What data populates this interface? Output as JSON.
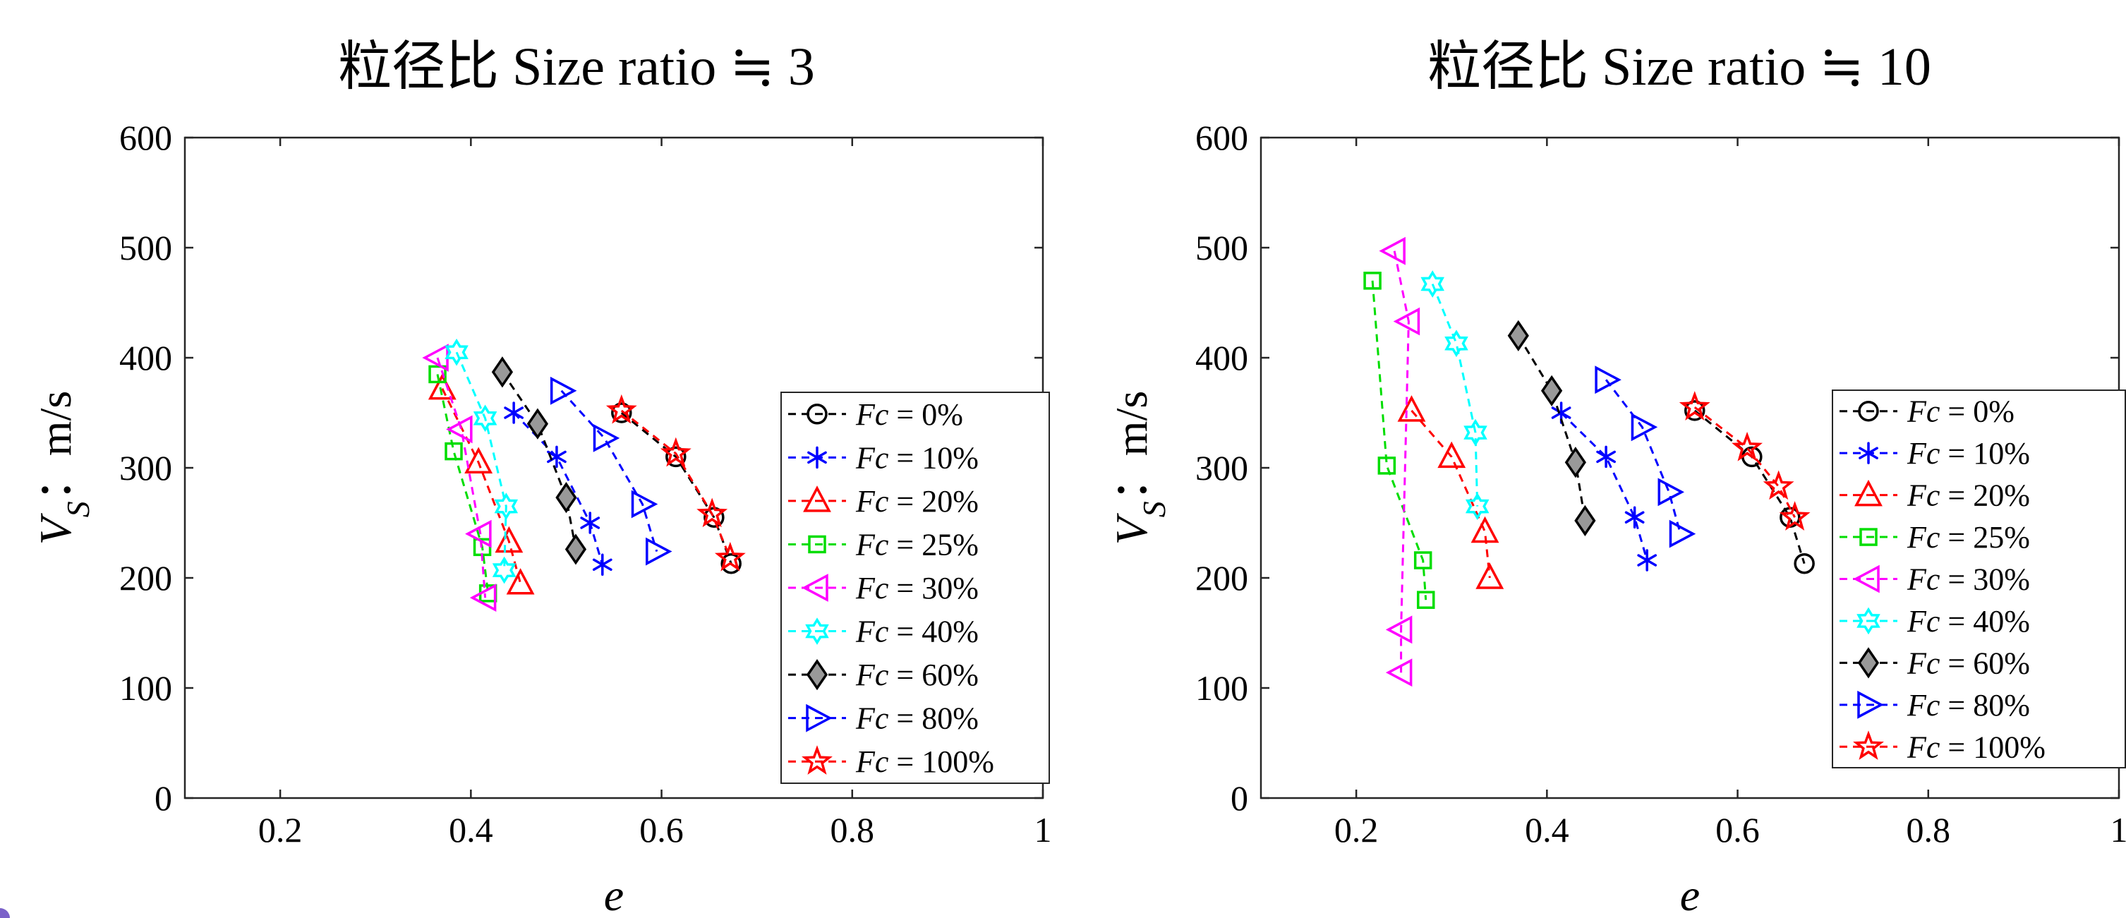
{
  "chart_data": [
    {
      "type": "scatter",
      "title": "粒径比 Size ratio ≒ 3",
      "xlabel": "e",
      "ylabel": "V_S : m/s",
      "ylabel_main": "V",
      "ylabel_sub": "S",
      "ylabel_rest": "：m/s",
      "xlim": [
        0.1,
        1.0
      ],
      "ylim": [
        0,
        600
      ],
      "xticks": [
        0.2,
        0.4,
        0.6,
        0.8,
        1.0
      ],
      "xtick_labels": [
        "0.2",
        "0.4",
        "0.6",
        "0.8",
        "1"
      ],
      "yticks": [
        0,
        100,
        200,
        300,
        400,
        500,
        600
      ],
      "ytick_labels": [
        "0",
        "100",
        "200",
        "300",
        "400",
        "500",
        "600"
      ],
      "grid": false,
      "legend_position": "right",
      "series": [
        {
          "name": "Fc = 0%",
          "var": "Fc",
          "eq": " = ",
          "val": "0%",
          "color": "#000000",
          "marker": "circle",
          "x": [
            0.558,
            0.615,
            0.655,
            0.673
          ],
          "y": [
            350,
            310,
            255,
            213
          ]
        },
        {
          "name": "Fc = 10%",
          "var": "Fc",
          "eq": " = ",
          "val": "10%",
          "color": "#0000ff",
          "marker": "asterisk",
          "x": [
            0.445,
            0.49,
            0.525,
            0.538
          ],
          "y": [
            350,
            310,
            250,
            212
          ]
        },
        {
          "name": "Fc = 20%",
          "var": "Fc",
          "eq": " = ",
          "val": "20%",
          "color": "#ff0000",
          "marker": "triangle-up",
          "x": [
            0.37,
            0.408,
            0.44,
            0.452
          ],
          "y": [
            372,
            305,
            233,
            195
          ]
        },
        {
          "name": "Fc = 25%",
          "var": "Fc",
          "eq": " = ",
          "val": "25%",
          "color": "#00dd00",
          "marker": "square",
          "x": [
            0.365,
            0.382,
            0.412,
            0.418
          ],
          "y": [
            385,
            315,
            228,
            186
          ]
        },
        {
          "name": "Fc = 30%",
          "var": "Fc",
          "eq": " = ",
          "val": "30%",
          "color": "#ff00ff",
          "marker": "triangle-left",
          "x": [
            0.365,
            0.39,
            0.41,
            0.415
          ],
          "y": [
            400,
            335,
            240,
            182
          ]
        },
        {
          "name": "Fc = 40%",
          "var": "Fc",
          "eq": " = ",
          "val": "40%",
          "color": "#00ffff",
          "marker": "hexagram",
          "x": [
            0.385,
            0.415,
            0.437,
            0.435
          ],
          "y": [
            405,
            345,
            265,
            207
          ]
        },
        {
          "name": "Fc = 60%",
          "var": "Fc",
          "eq": " = ",
          "val": "60%",
          "color": "#000000",
          "fill": "#999999",
          "marker": "diamond",
          "x": [
            0.433,
            0.47,
            0.5,
            0.51
          ],
          "y": [
            387,
            340,
            273,
            226
          ]
        },
        {
          "name": "Fc = 80%",
          "var": "Fc",
          "eq": " = ",
          "val": "80%",
          "color": "#0000ff",
          "marker": "triangle-right",
          "x": [
            0.495,
            0.54,
            0.58,
            0.595
          ],
          "y": [
            370,
            327,
            267,
            224
          ]
        },
        {
          "name": "Fc = 100%",
          "var": "Fc",
          "eq": " = ",
          "val": "100%",
          "color": "#ff0000",
          "marker": "pentagram",
          "x": [
            0.558,
            0.615,
            0.653,
            0.672
          ],
          "y": [
            352,
            313,
            258,
            218
          ]
        }
      ]
    },
    {
      "type": "scatter",
      "title": "粒径比 Size ratio ≒ 10",
      "xlabel": "e",
      "ylabel": "V_S : m/s",
      "ylabel_main": "V",
      "ylabel_sub": "S",
      "ylabel_rest": "：m/s",
      "xlim": [
        0.1,
        1.0
      ],
      "ylim": [
        0,
        600
      ],
      "xticks": [
        0.2,
        0.4,
        0.6,
        0.8,
        1.0
      ],
      "xtick_labels": [
        "0.2",
        "0.4",
        "0.6",
        "0.8",
        "1"
      ],
      "yticks": [
        0,
        100,
        200,
        300,
        400,
        500,
        600
      ],
      "ytick_labels": [
        "0",
        "100",
        "200",
        "300",
        "400",
        "500",
        "600"
      ],
      "grid": false,
      "legend_position": "right",
      "series": [
        {
          "name": "Fc = 0%",
          "var": "Fc",
          "eq": " = ",
          "val": "0%",
          "color": "#000000",
          "marker": "circle",
          "x": [
            0.555,
            0.615,
            0.655,
            0.67
          ],
          "y": [
            352,
            310,
            255,
            213
          ]
        },
        {
          "name": "Fc = 10%",
          "var": "Fc",
          "eq": " = ",
          "val": "10%",
          "color": "#0000ff",
          "marker": "asterisk",
          "x": [
            0.415,
            0.462,
            0.492,
            0.505
          ],
          "y": [
            350,
            310,
            255,
            216
          ]
        },
        {
          "name": "Fc = 20%",
          "var": "Fc",
          "eq": " = ",
          "val": "20%",
          "color": "#ff0000",
          "marker": "triangle-up",
          "x": [
            0.258,
            0.3,
            0.335,
            0.34
          ],
          "y": [
            352,
            310,
            242,
            200
          ]
        },
        {
          "name": "Fc = 25%",
          "var": "Fc",
          "eq": " = ",
          "val": "25%",
          "color": "#00dd00",
          "marker": "square",
          "x": [
            0.217,
            0.232,
            0.27,
            0.273
          ],
          "y": [
            470,
            302,
            216,
            180
          ]
        },
        {
          "name": "Fc = 30%",
          "var": "Fc",
          "eq": " = ",
          "val": "30%",
          "color": "#ff00ff",
          "marker": "triangle-left",
          "x": [
            0.24,
            0.255,
            0.247,
            0.247
          ],
          "y": [
            497,
            433,
            153,
            114
          ]
        },
        {
          "name": "Fc = 40%",
          "var": "Fc",
          "eq": " = ",
          "val": "40%",
          "color": "#00ffff",
          "marker": "hexagram",
          "x": [
            0.28,
            0.305,
            0.325,
            0.327
          ],
          "y": [
            467,
            413,
            332,
            265
          ]
        },
        {
          "name": "Fc = 60%",
          "var": "Fc",
          "eq": " = ",
          "val": "60%",
          "color": "#000000",
          "fill": "#999999",
          "marker": "diamond",
          "x": [
            0.37,
            0.405,
            0.43,
            0.44
          ],
          "y": [
            420,
            370,
            305,
            252
          ]
        },
        {
          "name": "Fc = 80%",
          "var": "Fc",
          "eq": " = ",
          "val": "80%",
          "color": "#0000ff",
          "marker": "triangle-right",
          "x": [
            0.462,
            0.5,
            0.528,
            0.54
          ],
          "y": [
            380,
            337,
            278,
            240
          ]
        },
        {
          "name": "Fc = 100%",
          "var": "Fc",
          "eq": " = ",
          "val": "100%",
          "color": "#ff0000",
          "marker": "pentagram",
          "x": [
            0.555,
            0.61,
            0.643,
            0.66
          ],
          "y": [
            355,
            318,
            283,
            255
          ]
        }
      ]
    }
  ]
}
